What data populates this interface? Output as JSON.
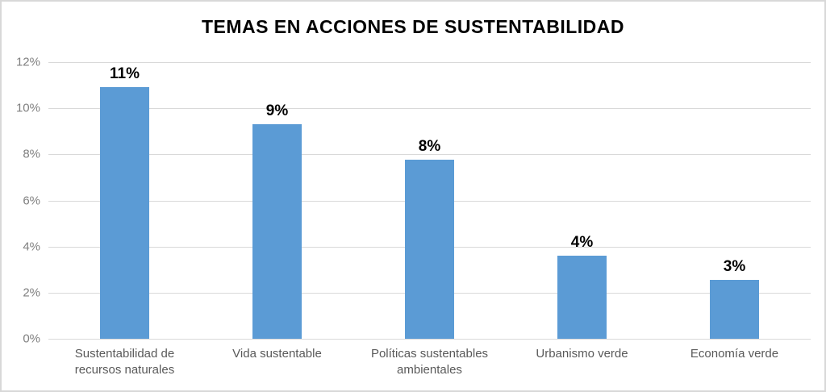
{
  "chart_data": {
    "type": "bar",
    "title": "TEMAS EN ACCIONES DE SUSTENTABILIDAD",
    "categories": [
      "Sustentabilidad de recursos naturales",
      "Vida sustentable",
      "Políticas sustentables ambientales",
      "Urbanismo verde",
      "Economía verde"
    ],
    "values": [
      10.9,
      9.3,
      7.75,
      3.6,
      2.55
    ],
    "data_labels": [
      "11%",
      "9%",
      "8%",
      "4%",
      "3%"
    ],
    "yticks": [
      "0%",
      "2%",
      "4%",
      "6%",
      "8%",
      "10%",
      "12%"
    ],
    "ytick_values": [
      0,
      2,
      4,
      6,
      8,
      10,
      12
    ],
    "ylim": [
      0,
      12
    ],
    "xlabel": "",
    "ylabel": "",
    "grid": true,
    "legend": "none",
    "colors": {
      "bar": "#5b9bd5",
      "gridline": "#d9d9d9",
      "tick_label": "#808080",
      "category_label": "#595959",
      "data_label": "#000000",
      "title": "#000000",
      "background": "#ffffff",
      "border": "#d8d8d8"
    }
  }
}
